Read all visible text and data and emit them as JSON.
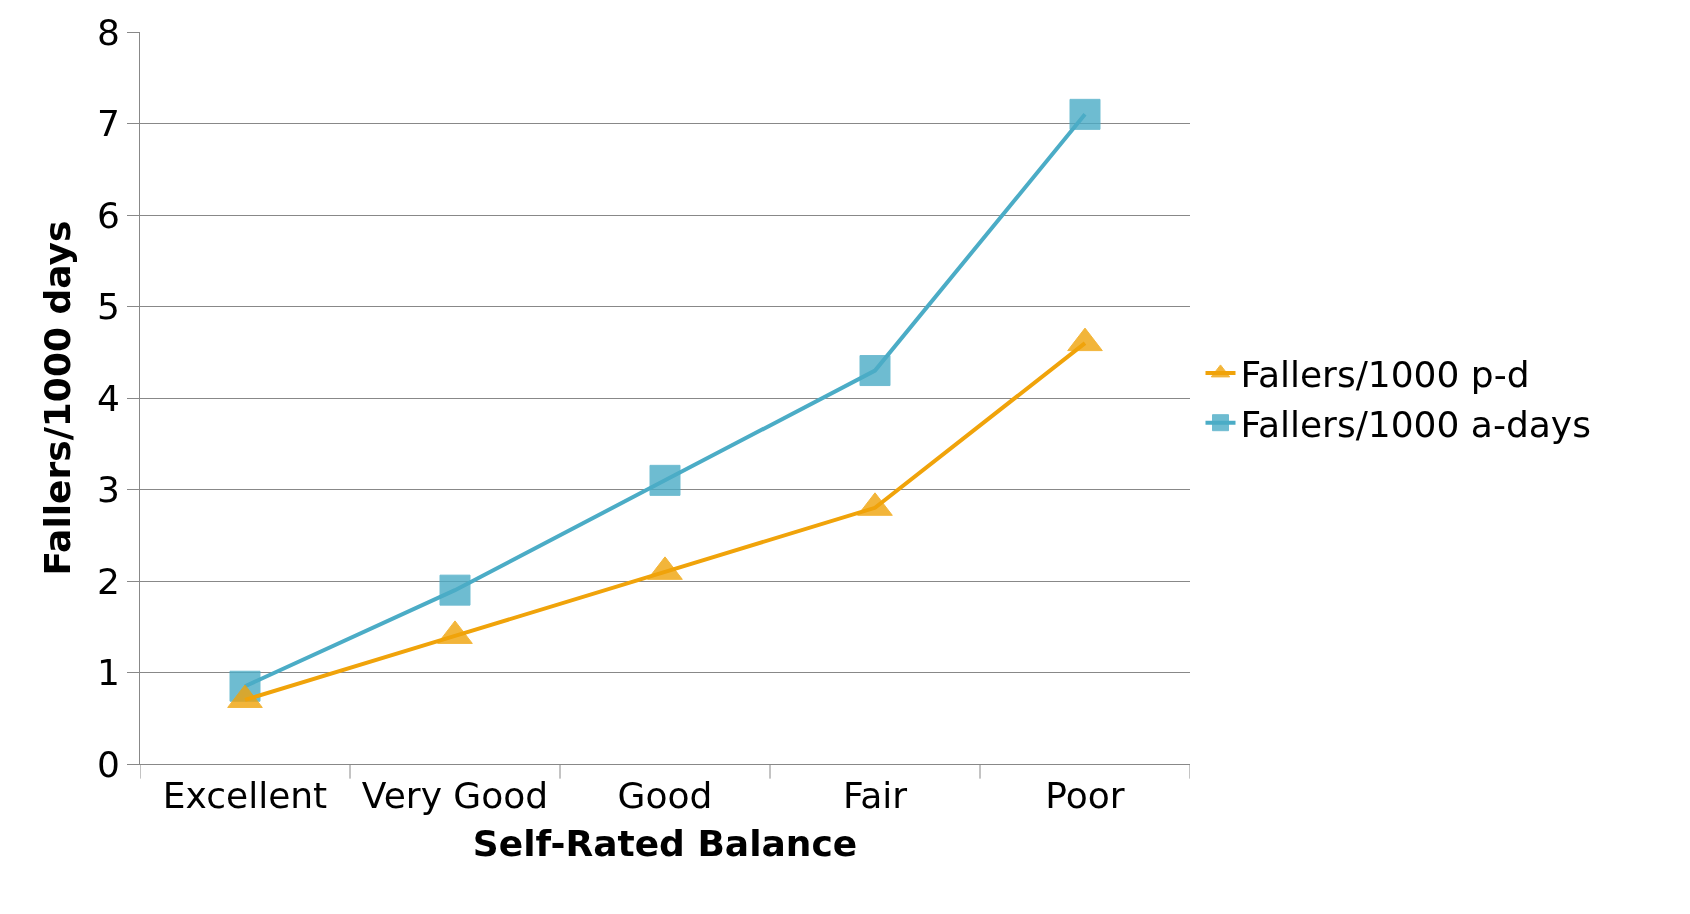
{
  "chart_data": {
    "type": "line",
    "xlabel": "Self-Rated Balance",
    "ylabel": "Fallers/1000 days",
    "categories": [
      "Excellent",
      "Very Good",
      "Good",
      "Fair",
      "Poor"
    ],
    "series": [
      {
        "name": "Fallers/1000 p-d",
        "color": "#f0a30a",
        "marker": "triangle",
        "values": [
          0.7,
          1.4,
          2.1,
          2.8,
          4.6
        ]
      },
      {
        "name": "Fallers/1000 a-days",
        "color": "#4bacc6",
        "marker": "square",
        "values": [
          0.85,
          1.9,
          3.1,
          4.3,
          7.1
        ]
      }
    ],
    "ylim": [
      0,
      8
    ],
    "yticks": [
      0,
      1,
      2,
      3,
      4,
      5,
      6,
      7,
      8
    ],
    "grid": "y",
    "legend": "right",
    "line_style": "solid"
  }
}
